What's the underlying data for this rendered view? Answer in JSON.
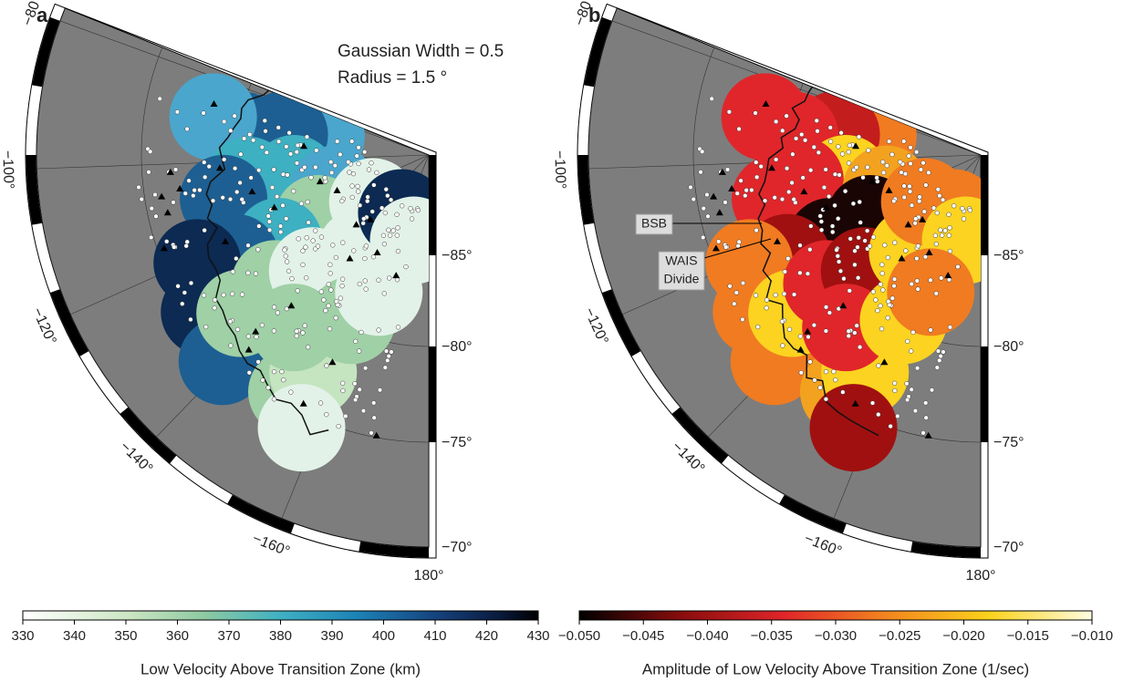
{
  "panels": [
    {
      "label": "a",
      "annotations": [
        "Gaussian Width = 0.5",
        "Radius = 1.5 °"
      ],
      "longitude_labels": [
        "−80°",
        "−100°",
        "−120°",
        "−140°",
        "−160°",
        "180°"
      ],
      "latitude_labels": [
        "−85°",
        "−80°",
        "−75°",
        "−70°"
      ],
      "colorbar": {
        "label": "Low Velocity Above Transition Zone (km)",
        "range": [
          330,
          430
        ],
        "ticks": [
          330,
          340,
          350,
          360,
          370,
          380,
          390,
          400,
          410,
          420,
          430
        ]
      }
    },
    {
      "label": "b",
      "annotations": [
        "BSB",
        "WAIS",
        "Divide"
      ],
      "longitude_labels": [
        "−80°",
        "−100°",
        "−120°",
        "−140°",
        "−160°",
        "180°"
      ],
      "latitude_labels": [
        "−85°",
        "−80°",
        "−75°",
        "−70°"
      ],
      "colorbar": {
        "label": "Amplitude of Low Velocity Above Transition Zone (1/sec)",
        "range": [
          -0.05,
          -0.01
        ],
        "ticks": [
          {
            "value": -0.05,
            "label": "−0.050"
          },
          {
            "value": -0.045,
            "label": "−0.045"
          },
          {
            "value": -0.04,
            "label": "−0.040"
          },
          {
            "value": -0.035,
            "label": "−0.035"
          },
          {
            "value": -0.03,
            "label": "−0.030"
          },
          {
            "value": -0.025,
            "label": "−0.025"
          },
          {
            "value": -0.02,
            "label": "−0.020"
          },
          {
            "value": -0.015,
            "label": "−0.015"
          },
          {
            "value": -0.01,
            "label": "−0.010"
          }
        ]
      }
    }
  ]
}
